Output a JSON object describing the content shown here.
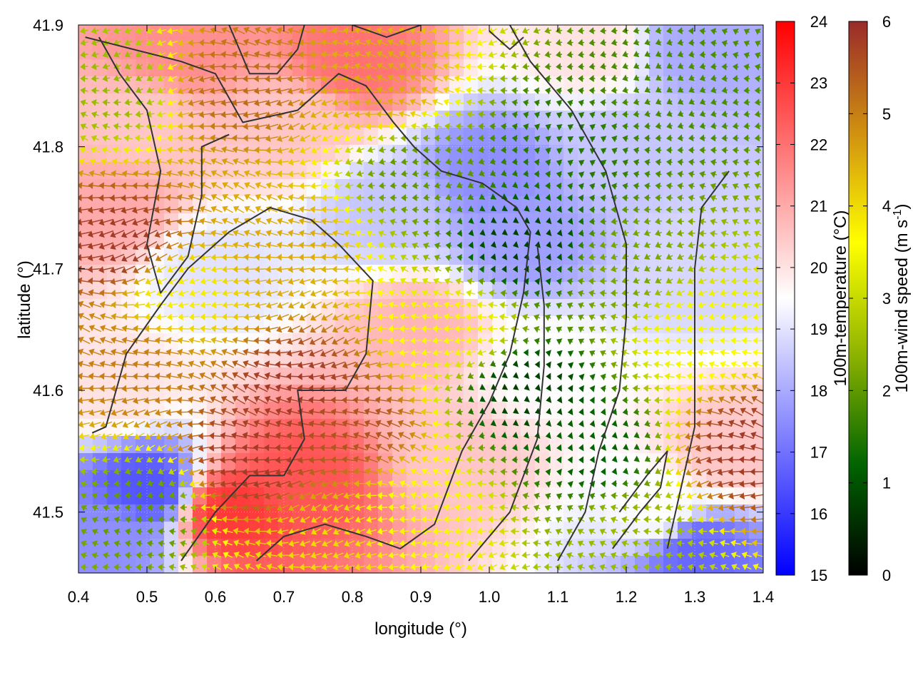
{
  "chart_data": {
    "type": "heatmap",
    "title": "",
    "xlabel": "longitude (°)",
    "ylabel": "latitude (°)",
    "xlim": [
      0.4,
      1.4
    ],
    "ylim": [
      41.45,
      41.9
    ],
    "x_ticks": [
      "0.4",
      "0.5",
      "0.6",
      "0.7",
      "0.8",
      "0.9",
      "1.0",
      "1.1",
      "1.2",
      "1.3",
      "1.4"
    ],
    "y_ticks": [
      "41.5",
      "41.6",
      "41.7",
      "41.8",
      "41.9"
    ],
    "layers": [
      {
        "name": "100m-temperature",
        "kind": "color-filled field"
      },
      {
        "name": "100m-wind speed",
        "kind": "wind vectors (arrows colored by speed)"
      },
      {
        "name": "contour lines",
        "kind": "dark grey contours"
      }
    ],
    "colorbars": [
      {
        "label": "100m-temperature (°C)",
        "range": [
          15,
          24
        ],
        "ticks": [
          "15",
          "16",
          "17",
          "18",
          "19",
          "20",
          "21",
          "22",
          "23",
          "24"
        ],
        "colors": [
          "#0000ff",
          "#ffffff",
          "#ff0000"
        ]
      },
      {
        "label_main": "100m-wind speed (m s",
        "label_sup": "-1",
        "label_end": ")",
        "range": [
          0,
          6
        ],
        "ticks": [
          "0",
          "1",
          "2",
          "3",
          "4",
          "5",
          "6"
        ],
        "colors": [
          "#000000",
          "#006400",
          "#8fb400",
          "#ffff00",
          "#d09010",
          "#9a2a2a"
        ]
      }
    ],
    "temperature_field": {
      "description_keypoints_lon_lat_value": [
        [
          0.55,
          41.88,
          21.5
        ],
        [
          0.8,
          41.87,
          22.0
        ],
        [
          0.72,
          41.82,
          20.5
        ],
        [
          1.0,
          41.78,
          17.5
        ],
        [
          1.05,
          41.72,
          17.8
        ],
        [
          1.07,
          41.62,
          19.5
        ],
        [
          0.73,
          41.53,
          22.5
        ],
        [
          0.62,
          41.5,
          23.0
        ],
        [
          0.45,
          41.6,
          20.0
        ],
        [
          0.45,
          41.75,
          21.0
        ],
        [
          0.6,
          41.7,
          19.0
        ],
        [
          0.9,
          41.65,
          20.8
        ],
        [
          1.2,
          41.8,
          18.5
        ],
        [
          1.3,
          41.7,
          18.8
        ],
        [
          1.35,
          41.55,
          20.5
        ],
        [
          1.25,
          41.5,
          19.5
        ],
        [
          0.45,
          41.48,
          17.5
        ],
        [
          0.5,
          41.52,
          16.5
        ],
        [
          1.3,
          41.47,
          16.8
        ],
        [
          1.3,
          41.88,
          18.0
        ],
        [
          1.15,
          41.88,
          20.0
        ],
        [
          0.95,
          41.55,
          20.5
        ],
        [
          0.85,
          41.75,
          18.5
        ],
        [
          0.5,
          41.82,
          20.5
        ]
      ]
    },
    "wind_field": {
      "units": "m s-1",
      "keypoints_lon_lat_speed": [
        [
          0.46,
          41.72,
          5.8
        ],
        [
          0.48,
          41.62,
          5.0
        ],
        [
          0.72,
          41.6,
          5.8
        ],
        [
          0.65,
          41.54,
          5.8
        ],
        [
          0.8,
          41.57,
          5.5
        ],
        [
          0.7,
          41.72,
          4.5
        ],
        [
          0.63,
          41.85,
          5.2
        ],
        [
          0.85,
          41.85,
          4.5
        ],
        [
          1.05,
          41.72,
          0.8
        ],
        [
          1.05,
          41.6,
          0.8
        ],
        [
          1.15,
          41.55,
          1.2
        ],
        [
          1.1,
          41.8,
          1.5
        ],
        [
          0.9,
          41.78,
          2.0
        ],
        [
          1.3,
          41.65,
          3.5
        ],
        [
          1.38,
          41.55,
          5.8
        ],
        [
          1.25,
          41.85,
          1.8
        ],
        [
          0.5,
          41.5,
          2.0
        ],
        [
          0.95,
          41.65,
          3.5
        ],
        [
          0.55,
          41.68,
          3.8
        ],
        [
          1.2,
          41.7,
          2.2
        ],
        [
          0.75,
          41.47,
          4.0
        ],
        [
          1.2,
          41.48,
          2.5
        ],
        [
          0.45,
          41.85,
          2.5
        ],
        [
          0.9,
          41.5,
          3.5
        ]
      ],
      "prevailing_direction": "westward"
    }
  }
}
